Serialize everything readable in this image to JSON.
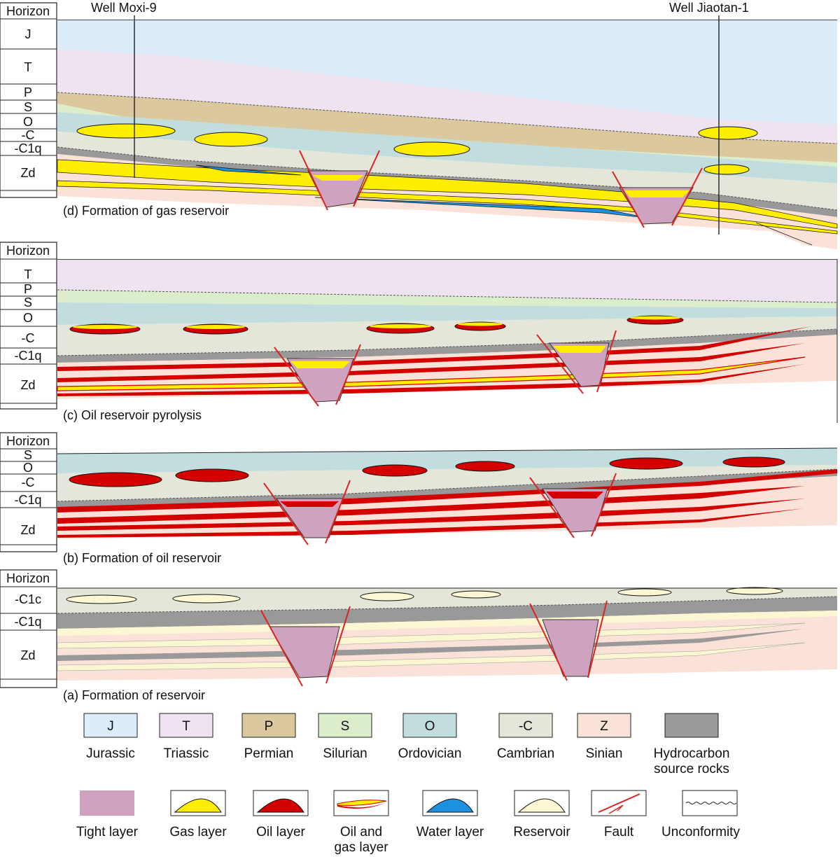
{
  "wells": {
    "left": "Well Moxi-9",
    "right": "Well Jiaotan-1"
  },
  "panels": {
    "d": {
      "caption": "(d) Formation of gas reservoir",
      "header": "Horizon",
      "horizons": [
        "J",
        "T",
        "P",
        "S",
        "O",
        "-C",
        "-C1q",
        "Zd"
      ]
    },
    "c": {
      "caption": "(c) Oil reservoir pyrolysis",
      "header": "Horizon",
      "horizons": [
        "T",
        "P",
        "S",
        "O",
        "-C",
        "-C1q",
        "Zd"
      ]
    },
    "b": {
      "caption": "(b) Formation of oil reservoir",
      "header": "Horizon",
      "horizons": [
        "S",
        "O",
        "-C",
        "-C1q",
        "Zd"
      ]
    },
    "a": {
      "caption": "(a) Formation of reservoir",
      "header": "Horizon",
      "horizons": [
        "-C1c",
        "-C1q",
        "Zd"
      ]
    }
  },
  "legend": {
    "strata": [
      {
        "symbol": "J",
        "label": "Jurassic",
        "color": "#dcecf8"
      },
      {
        "symbol": "T",
        "label": "Triassic",
        "color": "#efe3f1"
      },
      {
        "symbol": "P",
        "label": "Permian",
        "color": "#dcc89e"
      },
      {
        "symbol": "S",
        "label": "Silurian",
        "color": "#dcedcc"
      },
      {
        "symbol": "O",
        "label": "Ordovician",
        "color": "#c2dddd"
      },
      {
        "symbol": "-C",
        "label": "Cambrian",
        "color": "#e3e6d8"
      },
      {
        "symbol": "Z",
        "label": "Sinian",
        "color": "#fbe2d8"
      },
      {
        "symbol": "",
        "label": "Hydrocarbon source rocks",
        "label1": "Hydrocarbon",
        "label2": "source rocks",
        "color": "#999999"
      }
    ],
    "symbols": [
      {
        "label": "Tight layer"
      },
      {
        "label": "Gas layer"
      },
      {
        "label": "Oil layer"
      },
      {
        "label": "Oil and gas layer",
        "label1": "Oil and",
        "label2": "gas layer"
      },
      {
        "label": "Water layer"
      },
      {
        "label": "Reservoir"
      },
      {
        "label": "Fault"
      },
      {
        "label": "Unconformity"
      }
    ]
  },
  "colors": {
    "jurassic": "#dcecf8",
    "triassic": "#efe3f1",
    "permian": "#dcc89e",
    "silurian": "#dcedcc",
    "ordovician": "#c2dddd",
    "cambrian": "#e3e6d8",
    "sinian": "#fbe2d8",
    "source": "#999999",
    "tight": "#cfa3bf",
    "gas": "#ffee00",
    "oil": "#d40000",
    "water": "#1e90e0",
    "reservoir": "#fbf7d2",
    "fault": "#dd2222"
  }
}
